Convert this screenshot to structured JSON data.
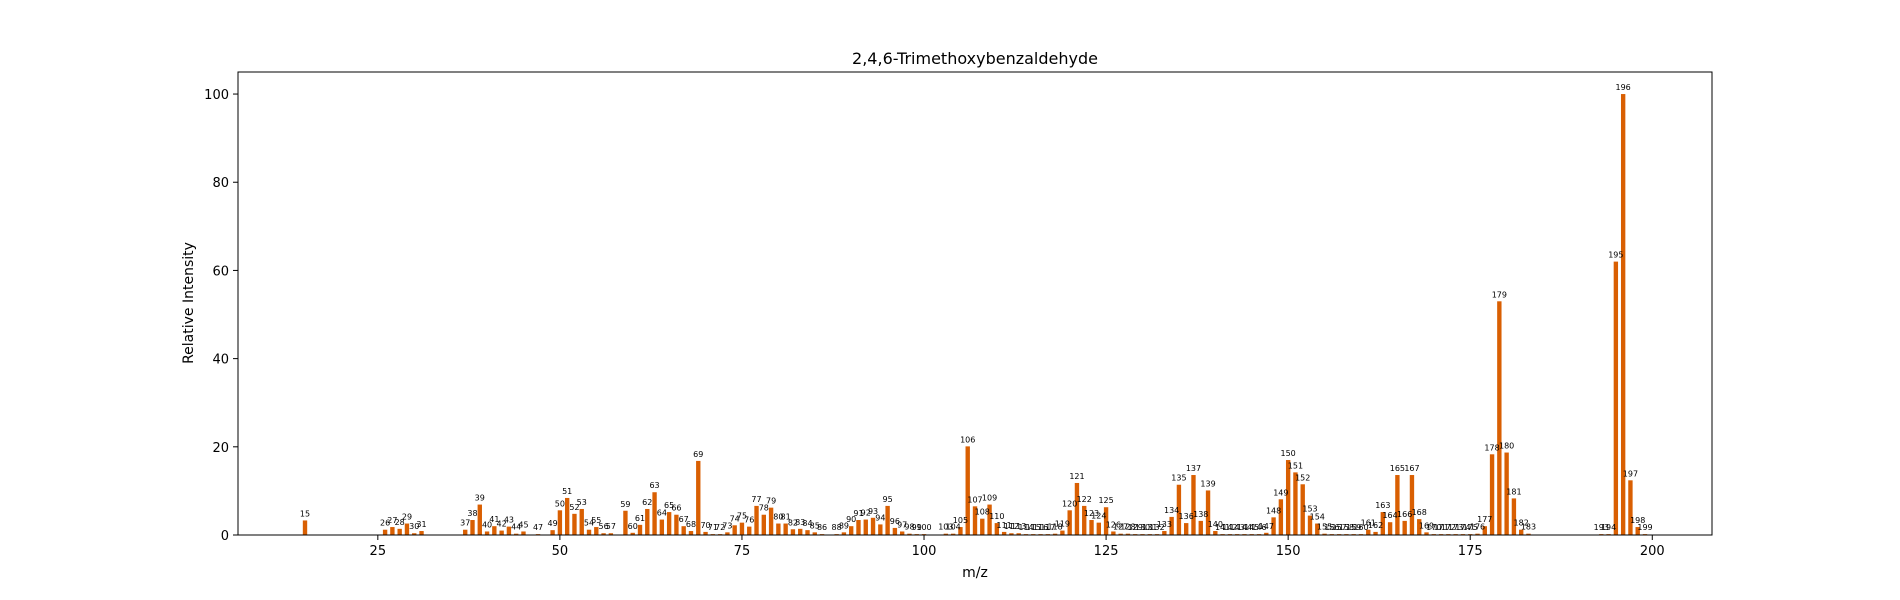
{
  "chart_data": {
    "type": "bar",
    "title": "2,4,6-Trimethoxybenzaldehyde",
    "xlabel": "m/z",
    "ylabel": "Relative Intensity",
    "xlim": [
      5.8,
      208.2
    ],
    "ylim": [
      0,
      105
    ],
    "xticks": [
      25,
      50,
      75,
      100,
      125,
      150,
      175,
      200
    ],
    "yticks": [
      0,
      20,
      40,
      60,
      80,
      100
    ],
    "grid": false,
    "bar_color": "#d95f02",
    "points": [
      {
        "mz": 15,
        "intensity": 3.3
      },
      {
        "mz": 26,
        "intensity": 1.2
      },
      {
        "mz": 27,
        "intensity": 1.8
      },
      {
        "mz": 28,
        "intensity": 1.4
      },
      {
        "mz": 29,
        "intensity": 2.6
      },
      {
        "mz": 30,
        "intensity": 0.4
      },
      {
        "mz": 31,
        "intensity": 0.9
      },
      {
        "mz": 37,
        "intensity": 1.2
      },
      {
        "mz": 38,
        "intensity": 3.4
      },
      {
        "mz": 39,
        "intensity": 6.9
      },
      {
        "mz": 40,
        "intensity": 0.8
      },
      {
        "mz": 41,
        "intensity": 2.0
      },
      {
        "mz": 42,
        "intensity": 1.0
      },
      {
        "mz": 43,
        "intensity": 1.9
      },
      {
        "mz": 44,
        "intensity": 0.3
      },
      {
        "mz": 45,
        "intensity": 0.8
      },
      {
        "mz": 47,
        "intensity": 0.2
      },
      {
        "mz": 49,
        "intensity": 1.1
      },
      {
        "mz": 50,
        "intensity": 5.6
      },
      {
        "mz": 51,
        "intensity": 8.4
      },
      {
        "mz": 52,
        "intensity": 4.8
      },
      {
        "mz": 53,
        "intensity": 5.9
      },
      {
        "mz": 54,
        "intensity": 1.2
      },
      {
        "mz": 55,
        "intensity": 1.8
      },
      {
        "mz": 56,
        "intensity": 0.4
      },
      {
        "mz": 57,
        "intensity": 0.4
      },
      {
        "mz": 59,
        "intensity": 5.5
      },
      {
        "mz": 60,
        "intensity": 0.5
      },
      {
        "mz": 61,
        "intensity": 2.3
      },
      {
        "mz": 62,
        "intensity": 5.9
      },
      {
        "mz": 63,
        "intensity": 9.7
      },
      {
        "mz": 64,
        "intensity": 3.5
      },
      {
        "mz": 65,
        "intensity": 5.2
      },
      {
        "mz": 66,
        "intensity": 4.6
      },
      {
        "mz": 67,
        "intensity": 2.0
      },
      {
        "mz": 68,
        "intensity": 0.9
      },
      {
        "mz": 69,
        "intensity": 16.8
      },
      {
        "mz": 70,
        "intensity": 0.7
      },
      {
        "mz": 71,
        "intensity": 0.2
      },
      {
        "mz": 72,
        "intensity": 0.2
      },
      {
        "mz": 73,
        "intensity": 0.6
      },
      {
        "mz": 74,
        "intensity": 2.2
      },
      {
        "mz": 75,
        "intensity": 2.8
      },
      {
        "mz": 76,
        "intensity": 1.9
      },
      {
        "mz": 77,
        "intensity": 6.6
      },
      {
        "mz": 78,
        "intensity": 4.6
      },
      {
        "mz": 79,
        "intensity": 6.2
      },
      {
        "mz": 80,
        "intensity": 2.6
      },
      {
        "mz": 81,
        "intensity": 2.6
      },
      {
        "mz": 82,
        "intensity": 1.3
      },
      {
        "mz": 83,
        "intensity": 1.4
      },
      {
        "mz": 84,
        "intensity": 1.1
      },
      {
        "mz": 85,
        "intensity": 0.6
      },
      {
        "mz": 86,
        "intensity": 0.2
      },
      {
        "mz": 88,
        "intensity": 0.2
      },
      {
        "mz": 89,
        "intensity": 0.6
      },
      {
        "mz": 90,
        "intensity": 2.0
      },
      {
        "mz": 91,
        "intensity": 3.4
      },
      {
        "mz": 92,
        "intensity": 3.5
      },
      {
        "mz": 93,
        "intensity": 3.9
      },
      {
        "mz": 94,
        "intensity": 2.4
      },
      {
        "mz": 95,
        "intensity": 6.6
      },
      {
        "mz": 96,
        "intensity": 1.6
      },
      {
        "mz": 97,
        "intensity": 0.8
      },
      {
        "mz": 98,
        "intensity": 0.3
      },
      {
        "mz": 99,
        "intensity": 0.2
      },
      {
        "mz": 100,
        "intensity": 0.2
      },
      {
        "mz": 103,
        "intensity": 0.3
      },
      {
        "mz": 104,
        "intensity": 0.3
      },
      {
        "mz": 105,
        "intensity": 1.8
      },
      {
        "mz": 106,
        "intensity": 20.1
      },
      {
        "mz": 107,
        "intensity": 6.5
      },
      {
        "mz": 108,
        "intensity": 3.7
      },
      {
        "mz": 109,
        "intensity": 6.9
      },
      {
        "mz": 110,
        "intensity": 2.7
      },
      {
        "mz": 111,
        "intensity": 0.7
      },
      {
        "mz": 112,
        "intensity": 0.4
      },
      {
        "mz": 113,
        "intensity": 0.4
      },
      {
        "mz": 114,
        "intensity": 0.2
      },
      {
        "mz": 115,
        "intensity": 0.2
      },
      {
        "mz": 116,
        "intensity": 0.2
      },
      {
        "mz": 117,
        "intensity": 0.2
      },
      {
        "mz": 118,
        "intensity": 0.3
      },
      {
        "mz": 119,
        "intensity": 1.0
      },
      {
        "mz": 120,
        "intensity": 5.6
      },
      {
        "mz": 121,
        "intensity": 11.8
      },
      {
        "mz": 122,
        "intensity": 6.6
      },
      {
        "mz": 123,
        "intensity": 3.4
      },
      {
        "mz": 124,
        "intensity": 2.8
      },
      {
        "mz": 125,
        "intensity": 6.3
      },
      {
        "mz": 126,
        "intensity": 0.8
      },
      {
        "mz": 127,
        "intensity": 0.3
      },
      {
        "mz": 128,
        "intensity": 0.3
      },
      {
        "mz": 129,
        "intensity": 0.2
      },
      {
        "mz": 130,
        "intensity": 0.2
      },
      {
        "mz": 131,
        "intensity": 0.2
      },
      {
        "mz": 132,
        "intensity": 0.2
      },
      {
        "mz": 133,
        "intensity": 0.9
      },
      {
        "mz": 134,
        "intensity": 4.1
      },
      {
        "mz": 135,
        "intensity": 11.4
      },
      {
        "mz": 136,
        "intensity": 2.7
      },
      {
        "mz": 137,
        "intensity": 13.6
      },
      {
        "mz": 138,
        "intensity": 3.2
      },
      {
        "mz": 139,
        "intensity": 10.1
      },
      {
        "mz": 140,
        "intensity": 0.9
      },
      {
        "mz": 141,
        "intensity": 0.2
      },
      {
        "mz": 142,
        "intensity": 0.2
      },
      {
        "mz": 143,
        "intensity": 0.2
      },
      {
        "mz": 144,
        "intensity": 0.2
      },
      {
        "mz": 145,
        "intensity": 0.2
      },
      {
        "mz": 146,
        "intensity": 0.2
      },
      {
        "mz": 147,
        "intensity": 0.5
      },
      {
        "mz": 148,
        "intensity": 4.0
      },
      {
        "mz": 149,
        "intensity": 8.1
      },
      {
        "mz": 150,
        "intensity": 17.0
      },
      {
        "mz": 151,
        "intensity": 14.2
      },
      {
        "mz": 152,
        "intensity": 11.5
      },
      {
        "mz": 153,
        "intensity": 4.4
      },
      {
        "mz": 154,
        "intensity": 2.6
      },
      {
        "mz": 155,
        "intensity": 0.3
      },
      {
        "mz": 156,
        "intensity": 0.2
      },
      {
        "mz": 157,
        "intensity": 0.2
      },
      {
        "mz": 158,
        "intensity": 0.2
      },
      {
        "mz": 159,
        "intensity": 0.2
      },
      {
        "mz": 160,
        "intensity": 0.2
      },
      {
        "mz": 161,
        "intensity": 1.2
      },
      {
        "mz": 162,
        "intensity": 0.7
      },
      {
        "mz": 163,
        "intensity": 5.2
      },
      {
        "mz": 164,
        "intensity": 2.9
      },
      {
        "mz": 165,
        "intensity": 13.6
      },
      {
        "mz": 166,
        "intensity": 3.2
      },
      {
        "mz": 167,
        "intensity": 13.6
      },
      {
        "mz": 168,
        "intensity": 3.6
      },
      {
        "mz": 169,
        "intensity": 0.6
      },
      {
        "mz": 170,
        "intensity": 0.2
      },
      {
        "mz": 171,
        "intensity": 0.2
      },
      {
        "mz": 172,
        "intensity": 0.2
      },
      {
        "mz": 173,
        "intensity": 0.2
      },
      {
        "mz": 174,
        "intensity": 0.2
      },
      {
        "mz": 175,
        "intensity": 0.2
      },
      {
        "mz": 176,
        "intensity": 0.3
      },
      {
        "mz": 177,
        "intensity": 2.0
      },
      {
        "mz": 178,
        "intensity": 18.3
      },
      {
        "mz": 179,
        "intensity": 53.0
      },
      {
        "mz": 180,
        "intensity": 18.7
      },
      {
        "mz": 181,
        "intensity": 8.3
      },
      {
        "mz": 182,
        "intensity": 1.2
      },
      {
        "mz": 183,
        "intensity": 0.3
      },
      {
        "mz": 193,
        "intensity": 0.2
      },
      {
        "mz": 194,
        "intensity": 0.2
      },
      {
        "mz": 195,
        "intensity": 62.0
      },
      {
        "mz": 196,
        "intensity": 100.0
      },
      {
        "mz": 197,
        "intensity": 12.4
      },
      {
        "mz": 198,
        "intensity": 1.8
      },
      {
        "mz": 199,
        "intensity": 0.2
      }
    ]
  }
}
